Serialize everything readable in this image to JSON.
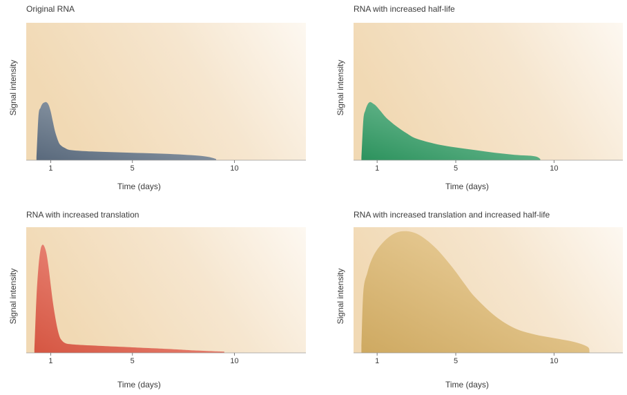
{
  "chart_data": [
    {
      "type": "area",
      "title": "Original RNA",
      "xlabel": "Time (days)",
      "ylabel": "Signal intensity",
      "xticks": [
        1,
        5,
        10
      ],
      "xlim": [
        -0.2,
        13.5
      ],
      "ylim": [
        0,
        1
      ],
      "grid": false,
      "color": "#5e6f82",
      "x": [
        0.3,
        0.4,
        0.5,
        0.6,
        0.7,
        0.8,
        0.9,
        1.0,
        1.1,
        1.2,
        1.3,
        1.4,
        1.5,
        1.7,
        2.0,
        3.0,
        5.0,
        7.0,
        8.5,
        9.1
      ],
      "y": [
        0.02,
        0.33,
        0.39,
        0.42,
        0.43,
        0.43,
        0.41,
        0.36,
        0.29,
        0.22,
        0.17,
        0.13,
        0.11,
        0.09,
        0.075,
        0.065,
        0.055,
        0.045,
        0.03,
        0.01
      ]
    },
    {
      "type": "area",
      "title": "RNA with increased half-life",
      "xlabel": "Time (days)",
      "ylabel": "Signal intensity",
      "xticks": [
        1,
        5,
        10
      ],
      "xlim": [
        -0.2,
        13.5
      ],
      "ylim": [
        0,
        1
      ],
      "grid": false,
      "color": "#2e9a62",
      "x": [
        0.2,
        0.3,
        0.4,
        0.5,
        0.6,
        0.7,
        0.8,
        0.9,
        1.0,
        1.2,
        1.5,
        2.0,
        2.5,
        3.0,
        4.0,
        5.0,
        6.0,
        7.0,
        8.0,
        9.0,
        9.3
      ],
      "y": [
        0.02,
        0.3,
        0.37,
        0.41,
        0.43,
        0.43,
        0.42,
        0.41,
        0.395,
        0.36,
        0.31,
        0.25,
        0.2,
        0.16,
        0.12,
        0.095,
        0.075,
        0.055,
        0.04,
        0.03,
        0.01
      ]
    },
    {
      "type": "area",
      "title": "RNA with increased translation",
      "xlabel": "Time (days)",
      "ylabel": "Signal intensity",
      "xticks": [
        1,
        5,
        10
      ],
      "xlim": [
        -0.2,
        13.5
      ],
      "ylim": [
        0,
        1
      ],
      "grid": false,
      "color": "#e05a45",
      "x": [
        0.2,
        0.3,
        0.4,
        0.5,
        0.6,
        0.7,
        0.8,
        0.9,
        1.0,
        1.1,
        1.2,
        1.3,
        1.4,
        1.5,
        1.7,
        2.0,
        3.0,
        5.0,
        7.0,
        8.0,
        9.5
      ],
      "y": [
        0.02,
        0.45,
        0.7,
        0.84,
        0.88,
        0.86,
        0.8,
        0.69,
        0.55,
        0.42,
        0.31,
        0.22,
        0.15,
        0.11,
        0.08,
        0.07,
        0.06,
        0.045,
        0.03,
        0.02,
        0.01
      ]
    },
    {
      "type": "area",
      "title": "RNA with increased translation and increased half-life",
      "xlabel": "Time (days)",
      "ylabel": "Signal intensity",
      "xticks": [
        1,
        5,
        10
      ],
      "xlim": [
        -0.2,
        13.5
      ],
      "ylim": [
        0,
        1
      ],
      "grid": false,
      "color": "#d9b266",
      "x": [
        0.2,
        0.3,
        0.5,
        0.7,
        1.0,
        1.5,
        2.0,
        2.5,
        3.0,
        3.5,
        4.0,
        4.5,
        5.0,
        5.5,
        6.0,
        7.0,
        8.0,
        9.0,
        10.0,
        11.0,
        11.7,
        11.8
      ],
      "y": [
        0.05,
        0.5,
        0.65,
        0.75,
        0.84,
        0.93,
        0.98,
        0.99,
        0.97,
        0.92,
        0.85,
        0.76,
        0.66,
        0.55,
        0.45,
        0.3,
        0.2,
        0.15,
        0.12,
        0.09,
        0.05,
        0.01
      ]
    }
  ]
}
